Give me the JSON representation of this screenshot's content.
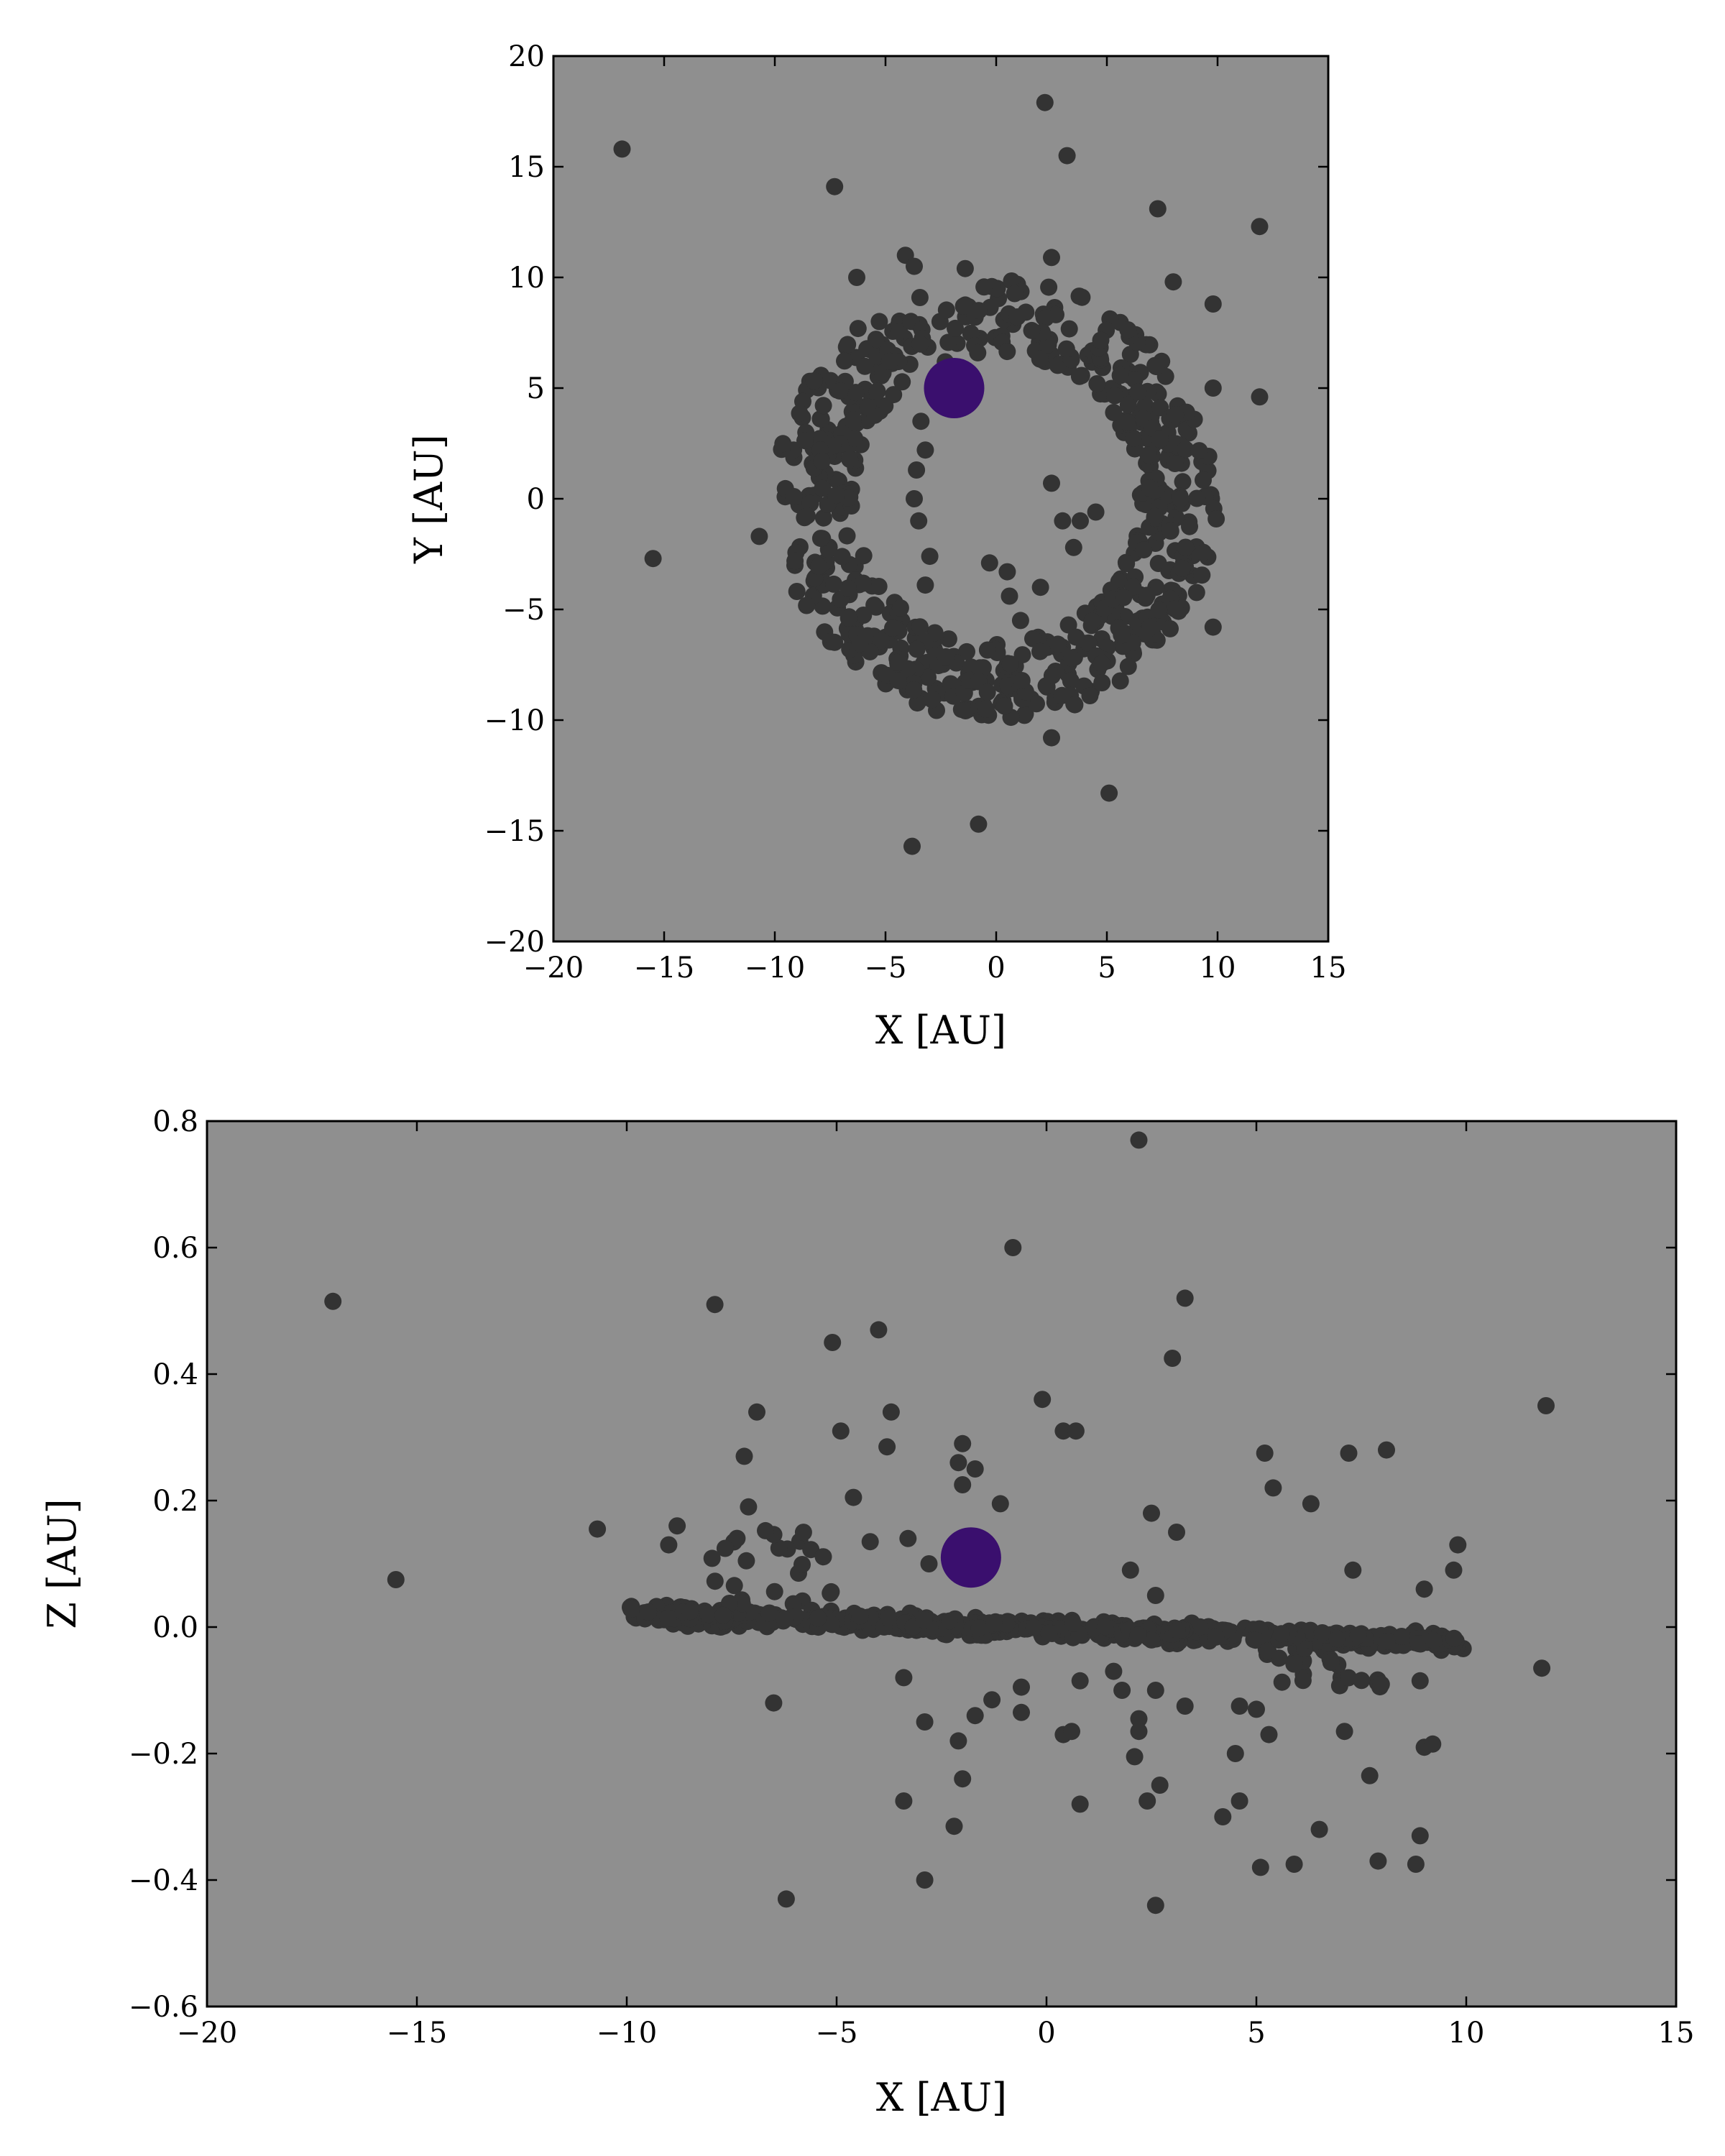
{
  "chart_data": [
    {
      "type": "scatter",
      "xlabel": "X [AU]",
      "ylabel": "Y [AU]",
      "xlim": [
        -20,
        15
      ],
      "ylim": [
        -20,
        20
      ],
      "xticks": [
        -20,
        -15,
        -10,
        -5,
        0,
        5,
        10,
        15
      ],
      "yticks": [
        -20,
        -15,
        -10,
        -5,
        0,
        5,
        10,
        15,
        20
      ],
      "xtick_labels": [
        "−20",
        "−15",
        "−10",
        "−5",
        "0",
        "5",
        "10",
        "15"
      ],
      "ytick_labels": [
        "−20",
        "−15",
        "−10",
        "−5",
        "0",
        "5",
        "10",
        "15",
        "20"
      ],
      "background": "#8f8f8f",
      "colors": {
        "particles": "#333333",
        "planet": "#3a0f6e"
      },
      "planet": {
        "x": -1.9,
        "y": 5.0
      },
      "points": [
        [
          -16.9,
          15.8
        ],
        [
          -7.3,
          14.1
        ],
        [
          2.2,
          17.9
        ],
        [
          3.2,
          15.5
        ],
        [
          7.3,
          13.1
        ],
        [
          11.9,
          12.3
        ],
        [
          -6.3,
          10.0
        ],
        [
          -4.1,
          11.0
        ],
        [
          -3.7,
          10.5
        ],
        [
          -1.4,
          10.4
        ],
        [
          2.5,
          10.9
        ],
        [
          8.0,
          9.8
        ],
        [
          9.8,
          8.8
        ],
        [
          9.8,
          5.0
        ],
        [
          11.9,
          4.6
        ],
        [
          -15.5,
          -2.7
        ],
        [
          -10.7,
          -1.7
        ],
        [
          9.8,
          -5.8
        ],
        [
          2.5,
          -10.8
        ],
        [
          5.1,
          -13.3
        ],
        [
          -0.8,
          -14.7
        ],
        [
          -3.8,
          -15.7
        ],
        [
          -3.4,
          3.5
        ],
        [
          -3.2,
          2.2
        ],
        [
          -3.6,
          1.3
        ],
        [
          -3.7,
          0.0
        ],
        [
          -3.5,
          -1.0
        ],
        [
          -3.0,
          -2.6
        ],
        [
          -3.2,
          -3.9
        ],
        [
          -0.3,
          -2.9
        ],
        [
          0.5,
          -3.3
        ],
        [
          2.5,
          0.7
        ],
        [
          3.0,
          -1.0
        ],
        [
          3.8,
          -1.0
        ],
        [
          3.5,
          -2.2
        ],
        [
          4.5,
          -0.6
        ],
        [
          1.1,
          -5.5
        ],
        [
          0.6,
          -4.4
        ],
        [
          2.0,
          -4.0
        ]
      ],
      "ring": {
        "center": [
          0.0,
          0.0
        ],
        "radius_inner": 6.5,
        "radius_outer": 10.0,
        "count": 620
      }
    },
    {
      "type": "scatter",
      "xlabel": "X [AU]",
      "ylabel": "Z [AU]",
      "xlim": [
        -20,
        15
      ],
      "ylim": [
        -0.6,
        0.8
      ],
      "xticks": [
        -20,
        -15,
        -10,
        -5,
        0,
        5,
        10,
        15
      ],
      "yticks": [
        -0.6,
        -0.4,
        -0.2,
        0.0,
        0.2,
        0.4,
        0.6,
        0.8
      ],
      "xtick_labels": [
        "−20",
        "−15",
        "−10",
        "−5",
        "0",
        "5",
        "10",
        "15"
      ],
      "ytick_labels": [
        "−0.6",
        "−0.4",
        "−0.2",
        "0.0",
        "0.2",
        "0.4",
        "0.6",
        "0.8"
      ],
      "background": "#8f8f8f",
      "colors": {
        "particles": "#333333",
        "planet": "#3a0f6e"
      },
      "planet": {
        "x": -1.8,
        "z": 0.11
      },
      "points": [
        [
          -17.0,
          0.515
        ],
        [
          -15.5,
          0.075
        ],
        [
          -10.7,
          0.155
        ],
        [
          -7.9,
          0.51
        ],
        [
          -5.1,
          0.45
        ],
        [
          -4.0,
          0.47
        ],
        [
          -6.9,
          0.34
        ],
        [
          -4.9,
          0.31
        ],
        [
          -3.7,
          0.34
        ],
        [
          -3.8,
          0.285
        ],
        [
          -7.2,
          0.27
        ],
        [
          -4.6,
          0.205
        ],
        [
          -2.1,
          0.26
        ],
        [
          -2.0,
          0.29
        ],
        [
          -1.7,
          0.25
        ],
        [
          -2.0,
          0.225
        ],
        [
          -1.1,
          0.195
        ],
        [
          -0.1,
          0.36
        ],
        [
          0.4,
          0.31
        ],
        [
          0.7,
          0.31
        ],
        [
          -0.8,
          0.6
        ],
        [
          2.2,
          0.77
        ],
        [
          3.0,
          0.425
        ],
        [
          3.3,
          0.52
        ],
        [
          2.5,
          0.18
        ],
        [
          3.1,
          0.15
        ],
        [
          5.2,
          0.275
        ],
        [
          5.4,
          0.22
        ],
        [
          6.3,
          0.195
        ],
        [
          7.2,
          0.275
        ],
        [
          8.1,
          0.28
        ],
        [
          7.3,
          0.09
        ],
        [
          9.0,
          0.06
        ],
        [
          9.8,
          0.13
        ],
        [
          9.7,
          0.09
        ],
        [
          11.9,
          0.35
        ],
        [
          11.8,
          -0.065
        ],
        [
          -8.8,
          0.16
        ],
        [
          -9.0,
          0.13
        ],
        [
          -7.1,
          0.19
        ],
        [
          -4.2,
          0.135
        ],
        [
          -3.3,
          0.14
        ],
        [
          -2.8,
          0.1
        ],
        [
          2.0,
          0.09
        ],
        [
          2.6,
          0.05
        ],
        [
          -6.5,
          -0.12
        ],
        [
          -3.4,
          -0.08
        ],
        [
          -2.9,
          -0.15
        ],
        [
          -2.1,
          -0.18
        ],
        [
          -1.7,
          -0.14
        ],
        [
          -1.3,
          -0.115
        ],
        [
          -0.6,
          -0.095
        ],
        [
          -0.6,
          -0.135
        ],
        [
          0.4,
          -0.17
        ],
        [
          0.6,
          -0.165
        ],
        [
          0.8,
          -0.085
        ],
        [
          0.8,
          -0.28
        ],
        [
          2.2,
          -0.145
        ],
        [
          2.2,
          -0.165
        ],
        [
          2.1,
          -0.205
        ],
        [
          2.6,
          -0.1
        ],
        [
          2.4,
          -0.275
        ],
        [
          2.7,
          -0.25
        ],
        [
          3.3,
          -0.125
        ],
        [
          4.2,
          -0.3
        ],
        [
          4.5,
          -0.2
        ],
        [
          4.6,
          -0.275
        ],
        [
          4.6,
          -0.125
        ],
        [
          5.0,
          -0.13
        ],
        [
          5.3,
          -0.17
        ],
        [
          5.1,
          -0.38
        ],
        [
          5.9,
          -0.375
        ],
        [
          6.5,
          -0.32
        ],
        [
          7.1,
          -0.165
        ],
        [
          7.7,
          -0.235
        ],
        [
          7.9,
          -0.37
        ],
        [
          8.8,
          -0.375
        ],
        [
          8.9,
          -0.33
        ],
        [
          9.0,
          -0.19
        ],
        [
          9.2,
          -0.185
        ],
        [
          8.9,
          -0.085
        ],
        [
          -3.4,
          -0.275
        ],
        [
          -2.9,
          -0.4
        ],
        [
          -2.2,
          -0.315
        ],
        [
          -2.0,
          -0.24
        ],
        [
          -6.2,
          -0.43
        ],
        [
          2.6,
          -0.44
        ],
        [
          1.8,
          -0.1
        ],
        [
          1.6,
          -0.07
        ]
      ],
      "band": {
        "x_range": [
          -10.0,
          10.0
        ],
        "z_left": 0.02,
        "z_right": -0.025,
        "spread": 0.02,
        "count": 620
      }
    }
  ]
}
